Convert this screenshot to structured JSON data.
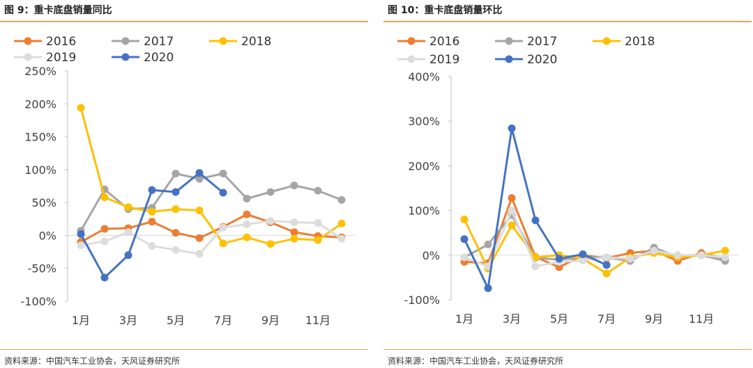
{
  "panels": [
    {
      "title": "图 9：重卡底盘销量同比",
      "source": "资料来源：中国汽车工业协会，天风证券研究所"
    },
    {
      "title": "图 10：重卡底盘销量环比",
      "source": "资料来源：中国汽车工业协会，天风证券研究所"
    }
  ],
  "colors": {
    "2016": "#ed7d31",
    "2017": "#a5a5a5",
    "2018": "#ffc000",
    "2019": "#dcdcdc",
    "2020": "#4472c4",
    "accent": "#f0a05a"
  },
  "chart_data": [
    {
      "type": "line",
      "x": [
        "1月",
        "2月",
        "3月",
        "4月",
        "5月",
        "6月",
        "7月",
        "8月",
        "9月",
        "10月",
        "11月",
        "12月"
      ],
      "x_tick_labels": [
        "1月",
        "3月",
        "5月",
        "7月",
        "9月",
        "11月"
      ],
      "ylim": [
        -100,
        250
      ],
      "y_ticks": [
        -100,
        -50,
        0,
        50,
        100,
        150,
        200,
        250
      ],
      "y_tick_labels": [
        "-100%",
        "-50%",
        "0%",
        "50%",
        "100%",
        "150%",
        "200%",
        "250%"
      ],
      "legend_position": "top",
      "series": [
        {
          "name": "2016",
          "values": [
            -10,
            10,
            11,
            21,
            4,
            -4,
            13,
            32,
            20,
            5,
            -1,
            -3
          ]
        },
        {
          "name": "2017",
          "values": [
            7,
            70,
            40,
            42,
            94,
            86,
            94,
            56,
            66,
            76,
            68,
            54
          ]
        },
        {
          "name": "2018",
          "values": [
            194,
            58,
            43,
            36,
            40,
            38,
            -12,
            -3,
            -13,
            -5,
            -7,
            18
          ]
        },
        {
          "name": "2019",
          "values": [
            -15,
            -9,
            5,
            -16,
            -22,
            -28,
            12,
            17,
            22,
            20,
            19,
            -5
          ]
        },
        {
          "name": "2020",
          "values": [
            2,
            -64,
            -30,
            69,
            66,
            95,
            65,
            null,
            null,
            null,
            null,
            null
          ]
        }
      ]
    },
    {
      "type": "line",
      "x": [
        "1月",
        "2月",
        "3月",
        "4月",
        "5月",
        "6月",
        "7月",
        "8月",
        "9月",
        "10月",
        "11月",
        "12月"
      ],
      "x_tick_labels": [
        "1月",
        "3月",
        "5月",
        "7月",
        "9月",
        "11月"
      ],
      "ylim": [
        -100,
        400
      ],
      "y_ticks": [
        -100,
        0,
        100,
        200,
        300,
        400
      ],
      "y_tick_labels": [
        "-100%",
        "0%",
        "100%",
        "200%",
        "300%",
        "400%"
      ],
      "legend_position": "top",
      "series": [
        {
          "name": "2016",
          "values": [
            -15,
            -18,
            128,
            -4,
            -27,
            0,
            -7,
            5,
            10,
            -13,
            5,
            -8
          ]
        },
        {
          "name": "2017",
          "values": [
            -5,
            24,
            90,
            -6,
            -10,
            -5,
            -5,
            -13,
            17,
            -4,
            0,
            -13
          ]
        },
        {
          "name": "2018",
          "values": [
            80,
            -30,
            67,
            -5,
            0,
            -8,
            -41,
            -5,
            5,
            -5,
            0,
            10
          ]
        },
        {
          "name": "2019",
          "values": [
            -5,
            -25,
            100,
            -25,
            -15,
            -12,
            -5,
            -8,
            10,
            0,
            0,
            -5
          ]
        },
        {
          "name": "2020",
          "values": [
            36,
            -74,
            284,
            78,
            -8,
            2,
            -22,
            null,
            null,
            null,
            null,
            null
          ]
        }
      ]
    }
  ]
}
